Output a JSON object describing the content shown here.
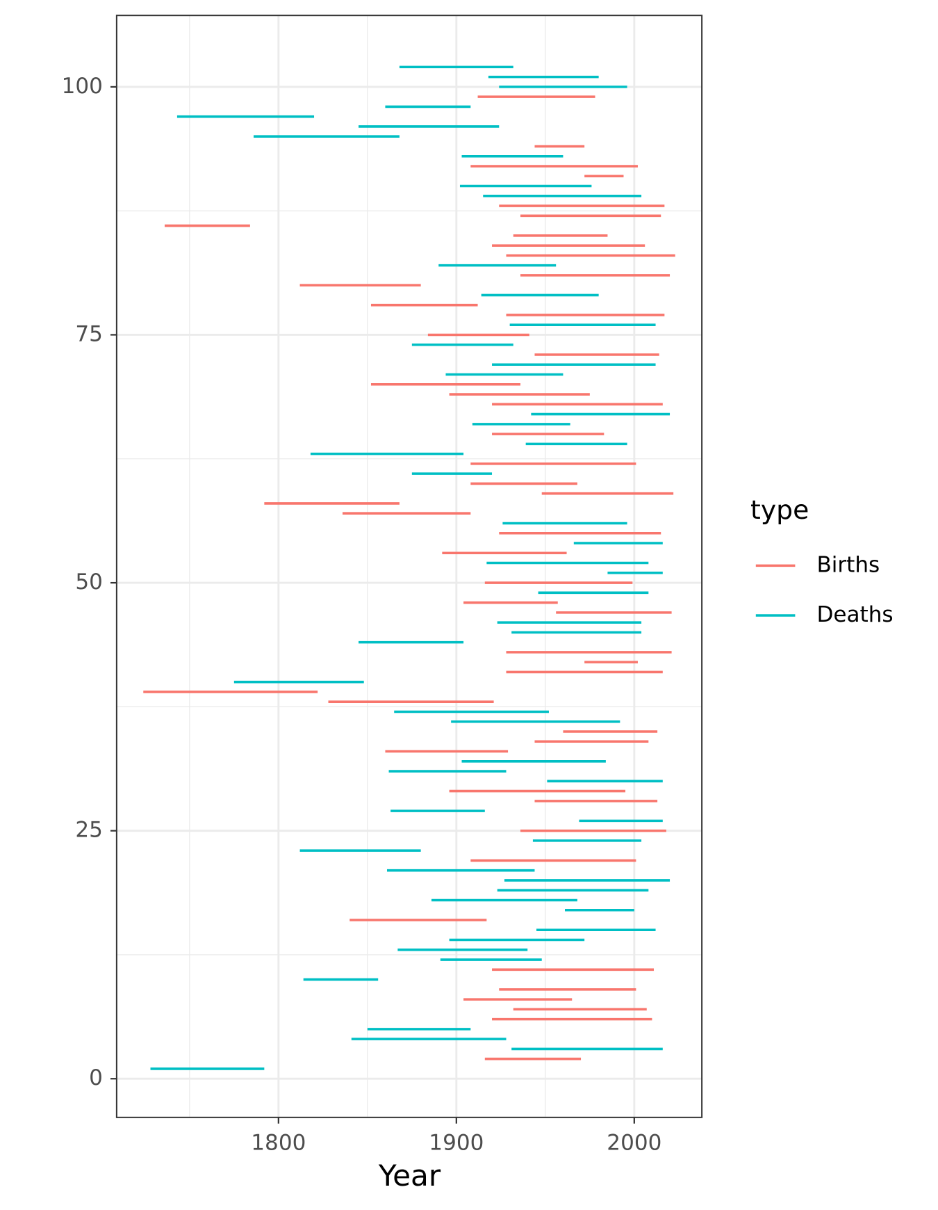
{
  "chart_data": {
    "type": "segment",
    "x_label": "Year",
    "legend_title": "type",
    "legend_position": "right",
    "xlim": [
      1709,
      2038
    ],
    "ylim": [
      -3.9,
      107.2
    ],
    "xticks": [
      1800,
      1900,
      2000
    ],
    "yticks": [
      0,
      25,
      50,
      75,
      100
    ],
    "xminor": [
      1750,
      1850,
      1950
    ],
    "yminor": [
      12.5,
      37.5,
      62.5,
      87.5
    ],
    "grid": true,
    "series": [
      {
        "name": "Births",
        "color": "#F8766D",
        "y": [
          2,
          6,
          7,
          8,
          9,
          11,
          16,
          22,
          25,
          28,
          29,
          33,
          34,
          35,
          38,
          39,
          41,
          42,
          43,
          47,
          48,
          50,
          53,
          55,
          57,
          58,
          59,
          60,
          62,
          65,
          68,
          69,
          70,
          73,
          75,
          77,
          78,
          80,
          81,
          83,
          84,
          85,
          86,
          87,
          88,
          91,
          92,
          94,
          99
        ],
        "start": [
          1916,
          1920,
          1932,
          1904,
          1924,
          1920,
          1840,
          1908,
          1936,
          1944,
          1896,
          1860,
          1944,
          1960,
          1828,
          1724,
          1928,
          1972,
          1928,
          1956,
          1904,
          1916,
          1892,
          1924,
          1836,
          1792,
          1948,
          1908,
          1908,
          1920,
          1920,
          1896,
          1852,
          1944,
          1884,
          1928,
          1852,
          1812,
          1936,
          1928,
          1920,
          1932,
          1736,
          1936,
          1924,
          1972,
          1908,
          1944,
          1912
        ],
        "end": [
          1970,
          2010,
          2007,
          1965,
          2001,
          2011,
          1917,
          2001,
          2018,
          2013,
          1995,
          1929,
          2008,
          2013,
          1921,
          1822,
          2016,
          2002,
          2021,
          2021,
          1957,
          1999,
          1962,
          2015,
          1908,
          1868,
          2022,
          1968,
          2001,
          1983,
          2016,
          1975,
          1936,
          2014,
          1941,
          2017,
          1912,
          1880,
          2020,
          2023,
          2006,
          1985,
          1784,
          2015,
          2017,
          1994,
          2002,
          1972,
          1978
        ]
      },
      {
        "name": "Deaths",
        "color": "#00BFC4",
        "y": [
          1,
          3,
          4,
          5,
          10,
          12,
          13,
          14,
          15,
          17,
          18,
          19,
          20,
          21,
          23,
          24,
          26,
          27,
          30,
          31,
          32,
          36,
          37,
          40,
          44,
          45,
          46,
          49,
          51,
          52,
          54,
          56,
          61,
          63,
          64,
          66,
          67,
          71,
          72,
          74,
          76,
          79,
          82,
          89,
          90,
          93,
          95,
          96,
          97,
          98,
          100,
          101,
          102
        ],
        "start": [
          1728,
          1931,
          1841,
          1850,
          1814,
          1891,
          1867,
          1896,
          1945,
          1961,
          1886,
          1923,
          1927,
          1861,
          1812,
          1943,
          1969,
          1863,
          1951,
          1862,
          1903,
          1897,
          1865,
          1775,
          1845,
          1931,
          1923,
          1946,
          1985,
          1917,
          1966,
          1926,
          1875,
          1818,
          1939,
          1909,
          1942,
          1894,
          1920,
          1875,
          1930,
          1914,
          1890,
          1915,
          1902,
          1903,
          1786,
          1845,
          1743,
          1860,
          1924,
          1918,
          1868
        ],
        "end": [
          1792,
          2016,
          1928,
          1908,
          1856,
          1948,
          1940,
          1972,
          2012,
          2000,
          1968,
          2008,
          2020,
          1944,
          1880,
          2004,
          2016,
          1916,
          2016,
          1928,
          1984,
          1992,
          1952,
          1848,
          1904,
          2004,
          2004,
          2008,
          2016,
          2008,
          2016,
          1996,
          1920,
          1904,
          1996,
          1964,
          2020,
          1960,
          2012,
          1932,
          2012,
          1980,
          1956,
          2004,
          1976,
          1960,
          1868,
          1924,
          1820,
          1908,
          1996,
          1980,
          1932
        ]
      }
    ]
  }
}
